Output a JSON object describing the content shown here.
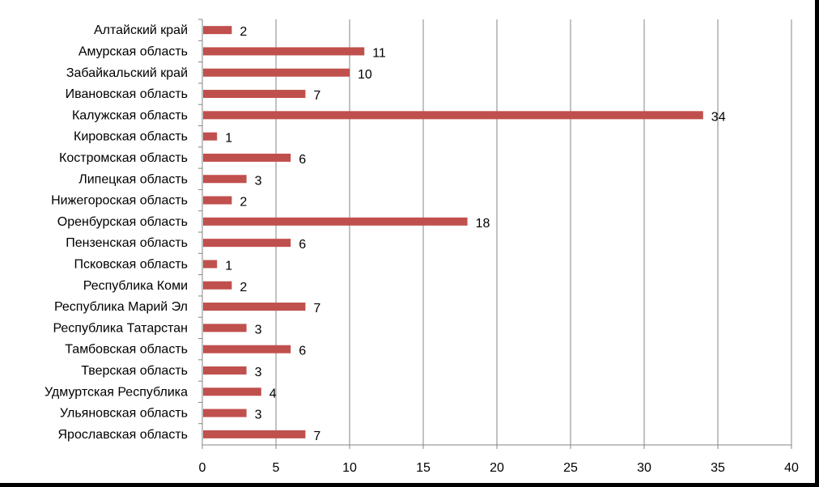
{
  "chart_data": {
    "type": "bar",
    "orientation": "horizontal",
    "title": "",
    "xlabel": "",
    "ylabel": "",
    "xlim": [
      0,
      40
    ],
    "x_ticks": [
      "0",
      "5",
      "10",
      "15",
      "20",
      "25",
      "30",
      "35",
      "40"
    ],
    "grid": "vertical",
    "legend": "none",
    "bar_color": "#C0504D",
    "categories": [
      "Алтайский край",
      "Амурская область",
      "Забайкальский край",
      "Ивановская область",
      "Калужская область",
      "Кировская область",
      "Костромская область",
      "Липецкая область",
      "Нижегороская область",
      "Оренбурская область",
      "Пензенская область",
      "Псковская область",
      "Республика Коми",
      "Республика Марий Эл",
      "Республика Татарстан",
      "Тамбовская область",
      "Тверская область",
      "Удмуртская Республика",
      "Ульяновская область",
      "Ярославская область"
    ],
    "values": [
      2,
      11,
      10,
      7,
      34,
      1,
      6,
      3,
      2,
      18,
      6,
      1,
      2,
      7,
      3,
      6,
      3,
      4,
      3,
      7
    ]
  }
}
